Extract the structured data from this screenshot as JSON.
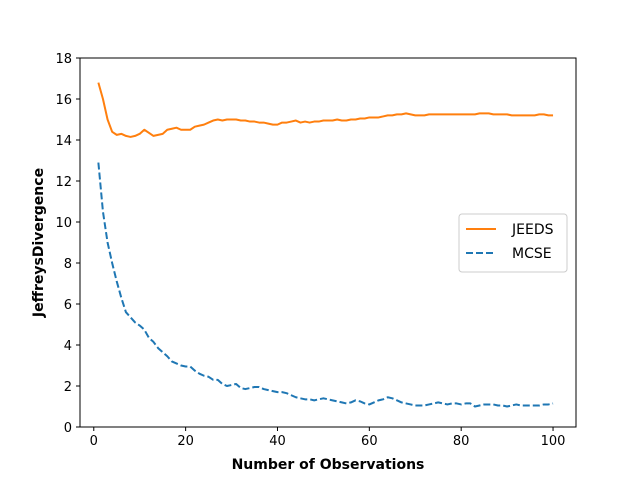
{
  "chart_data": {
    "type": "line",
    "title": "",
    "xlabel": "Number of Observations",
    "ylabel": "JeffreysDivergence",
    "xlim": [
      -3,
      105
    ],
    "ylim": [
      0,
      18
    ],
    "xticks": [
      0,
      20,
      40,
      60,
      80,
      100
    ],
    "yticks": [
      0,
      2,
      4,
      6,
      8,
      10,
      12,
      14,
      16,
      18
    ],
    "grid": false,
    "legend_position": "center-right",
    "series": [
      {
        "name": "JEEDS",
        "color": "#ff7f0e",
        "linestyle": "solid",
        "x": [
          1,
          2,
          3,
          4,
          5,
          6,
          7,
          8,
          9,
          10,
          11,
          12,
          13,
          14,
          15,
          16,
          17,
          18,
          19,
          20,
          21,
          22,
          23,
          24,
          25,
          26,
          27,
          28,
          29,
          30,
          31,
          32,
          33,
          34,
          35,
          36,
          37,
          38,
          39,
          40,
          41,
          42,
          43,
          44,
          45,
          46,
          47,
          48,
          49,
          50,
          51,
          52,
          53,
          54,
          55,
          56,
          57,
          58,
          59,
          60,
          61,
          62,
          63,
          64,
          65,
          66,
          67,
          68,
          69,
          70,
          71,
          72,
          73,
          74,
          75,
          76,
          77,
          78,
          79,
          80,
          81,
          82,
          83,
          84,
          85,
          86,
          87,
          88,
          89,
          90,
          91,
          92,
          93,
          94,
          95,
          96,
          97,
          98,
          99,
          100
        ],
        "values": [
          16.8,
          16.0,
          15.0,
          14.4,
          14.25,
          14.3,
          14.2,
          14.15,
          14.2,
          14.3,
          14.5,
          14.35,
          14.2,
          14.25,
          14.3,
          14.5,
          14.55,
          14.6,
          14.5,
          14.5,
          14.5,
          14.65,
          14.7,
          14.75,
          14.85,
          14.95,
          15.0,
          14.95,
          15.0,
          15.0,
          15.0,
          14.95,
          14.95,
          14.9,
          14.9,
          14.85,
          14.85,
          14.8,
          14.75,
          14.75,
          14.85,
          14.85,
          14.9,
          14.95,
          14.85,
          14.9,
          14.85,
          14.9,
          14.9,
          14.95,
          14.95,
          14.95,
          15.0,
          14.95,
          14.95,
          15.0,
          15.0,
          15.05,
          15.05,
          15.1,
          15.1,
          15.1,
          15.15,
          15.2,
          15.2,
          15.25,
          15.25,
          15.3,
          15.25,
          15.2,
          15.2,
          15.2,
          15.25,
          15.25,
          15.25,
          15.25,
          15.25,
          15.25,
          15.25,
          15.25,
          15.25,
          15.25,
          15.25,
          15.3,
          15.3,
          15.3,
          15.25,
          15.25,
          15.25,
          15.25,
          15.2,
          15.2,
          15.2,
          15.2,
          15.2,
          15.2,
          15.25,
          15.25,
          15.2,
          15.2
        ]
      },
      {
        "name": "MCSE",
        "color": "#1f77b4",
        "linestyle": "dashed",
        "x": [
          1,
          2,
          3,
          4,
          5,
          6,
          7,
          8,
          9,
          10,
          11,
          12,
          13,
          14,
          15,
          16,
          17,
          18,
          19,
          20,
          21,
          22,
          23,
          24,
          25,
          26,
          27,
          28,
          29,
          30,
          31,
          32,
          33,
          34,
          35,
          36,
          37,
          38,
          39,
          40,
          41,
          42,
          43,
          44,
          45,
          46,
          47,
          48,
          49,
          50,
          51,
          52,
          53,
          54,
          55,
          56,
          57,
          58,
          59,
          60,
          61,
          62,
          63,
          64,
          65,
          66,
          67,
          68,
          69,
          70,
          71,
          72,
          73,
          74,
          75,
          76,
          77,
          78,
          79,
          80,
          81,
          82,
          83,
          84,
          85,
          86,
          87,
          88,
          89,
          90,
          91,
          92,
          93,
          94,
          95,
          96,
          97,
          98,
          99,
          100
        ],
        "values": [
          12.9,
          10.5,
          9.0,
          8.0,
          7.1,
          6.3,
          5.6,
          5.35,
          5.1,
          4.95,
          4.75,
          4.35,
          4.15,
          3.85,
          3.65,
          3.45,
          3.2,
          3.1,
          3.0,
          2.95,
          2.95,
          2.75,
          2.6,
          2.5,
          2.45,
          2.3,
          2.3,
          2.1,
          2.0,
          2.05,
          2.1,
          1.9,
          1.85,
          1.9,
          1.95,
          1.95,
          1.85,
          1.8,
          1.75,
          1.7,
          1.7,
          1.65,
          1.55,
          1.45,
          1.4,
          1.35,
          1.35,
          1.3,
          1.35,
          1.4,
          1.35,
          1.3,
          1.25,
          1.2,
          1.15,
          1.2,
          1.3,
          1.25,
          1.15,
          1.1,
          1.2,
          1.3,
          1.35,
          1.45,
          1.4,
          1.3,
          1.2,
          1.15,
          1.1,
          1.05,
          1.05,
          1.05,
          1.1,
          1.15,
          1.2,
          1.15,
          1.1,
          1.15,
          1.15,
          1.1,
          1.15,
          1.15,
          1.0,
          1.05,
          1.1,
          1.1,
          1.1,
          1.05,
          1.05,
          1.0,
          1.05,
          1.1,
          1.05,
          1.05,
          1.05,
          1.05,
          1.05,
          1.1,
          1.1,
          1.15
        ]
      }
    ]
  }
}
